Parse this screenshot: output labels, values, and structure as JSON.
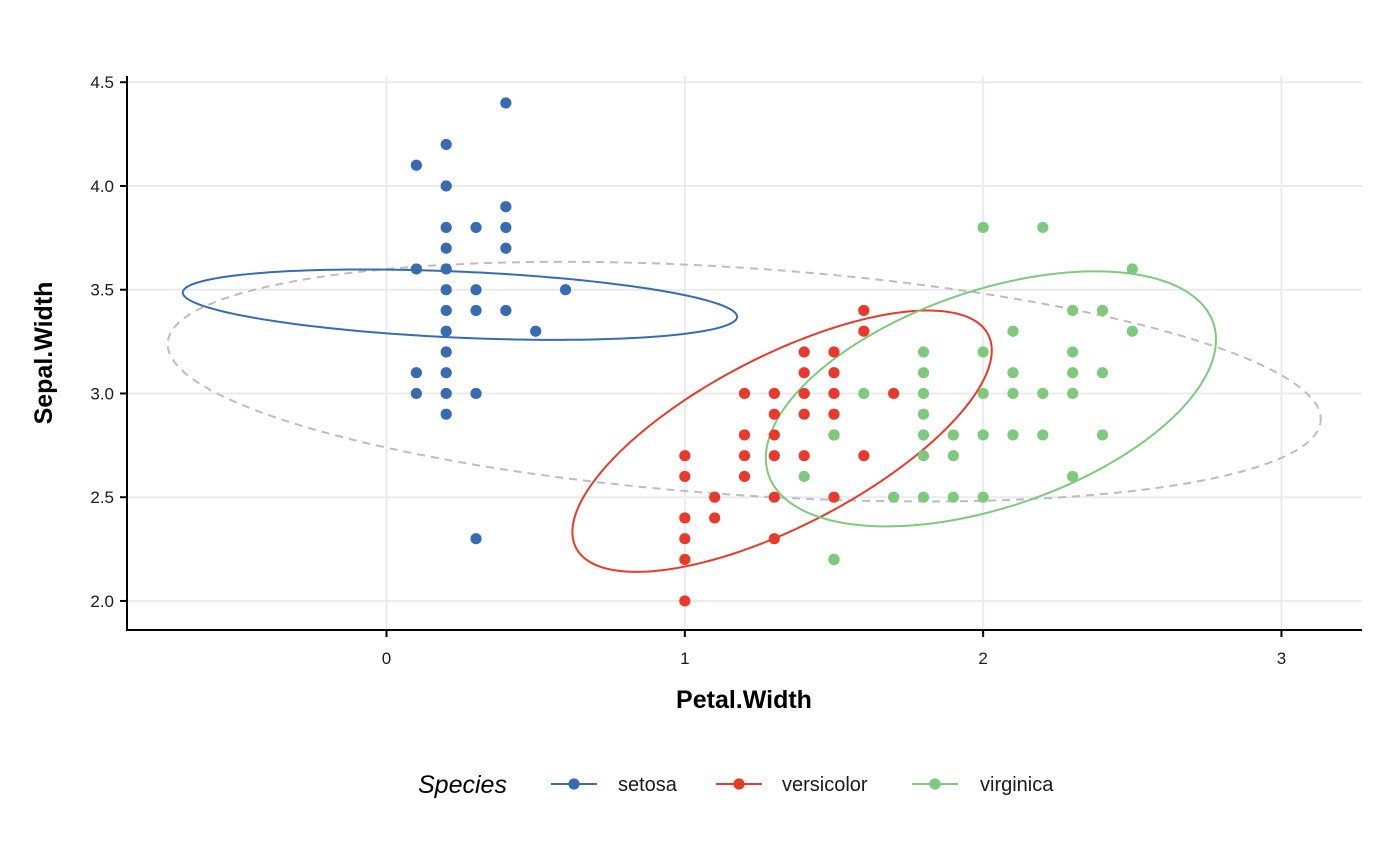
{
  "chart_data": {
    "type": "scatter",
    "title": "",
    "xlabel": "Petal.Width",
    "ylabel": "Sepal.Width",
    "xlim": [
      -0.87,
      3.27
    ],
    "ylim": [
      1.86,
      4.53
    ],
    "xticks": [
      0,
      1,
      2,
      3
    ],
    "yticks": [
      2.0,
      2.5,
      3.0,
      3.5,
      4.0,
      4.5
    ],
    "xtick_labels": [
      "0",
      "1",
      "2",
      "3"
    ],
    "ytick_labels": [
      "2.0",
      "2.5",
      "3.0",
      "3.5",
      "4.0",
      "4.5"
    ],
    "grid": true,
    "legend": {
      "title": "Species",
      "position": "bottom",
      "entries": [
        "setosa",
        "versicolor",
        "virginica"
      ]
    },
    "overall_ellipse": {
      "style": "dashed",
      "color": "#bdbdbd",
      "center": [
        1.199,
        3.057
      ],
      "semi_axes": [
        1.942,
        0.546
      ],
      "angle_deg": -5.8
    },
    "series": [
      {
        "name": "setosa",
        "color": "#386cb0",
        "ellipse": {
          "center": [
            0.246,
            3.428
          ],
          "semi_axes": [
            0.159,
            0.931
          ],
          "angle_deg": 86.3
        },
        "points": [
          [
            0.4,
            4.4
          ],
          [
            0.2,
            4.2
          ],
          [
            0.1,
            4.1
          ],
          [
            0.2,
            4.0
          ],
          [
            0.4,
            3.9
          ],
          [
            0.2,
            3.8
          ],
          [
            0.3,
            3.8
          ],
          [
            0.4,
            3.8
          ],
          [
            0.2,
            3.7
          ],
          [
            0.4,
            3.7
          ],
          [
            0.1,
            3.6
          ],
          [
            0.2,
            3.6
          ],
          [
            0.2,
            3.5
          ],
          [
            0.3,
            3.5
          ],
          [
            0.6,
            3.5
          ],
          [
            0.2,
            3.4
          ],
          [
            0.3,
            3.4
          ],
          [
            0.4,
            3.4
          ],
          [
            0.2,
            3.3
          ],
          [
            0.5,
            3.3
          ],
          [
            0.2,
            3.2
          ],
          [
            0.1,
            3.1
          ],
          [
            0.2,
            3.1
          ],
          [
            0.1,
            3.0
          ],
          [
            0.2,
            3.0
          ],
          [
            0.3,
            3.0
          ],
          [
            0.2,
            2.9
          ],
          [
            0.3,
            2.3
          ]
        ]
      },
      {
        "name": "versicolor",
        "color": "#e8392d",
        "ellipse": {
          "center": [
            1.326,
            2.77
          ],
          "semi_axes": [
            0.87,
            0.366
          ],
          "angle_deg": 40.5
        },
        "points": [
          [
            1.6,
            3.4
          ],
          [
            1.6,
            3.3
          ],
          [
            1.4,
            3.2
          ],
          [
            1.5,
            3.2
          ],
          [
            1.4,
            3.1
          ],
          [
            1.5,
            3.1
          ],
          [
            1.2,
            3.0
          ],
          [
            1.3,
            3.0
          ],
          [
            1.4,
            3.0
          ],
          [
            1.5,
            3.0
          ],
          [
            1.7,
            3.0
          ],
          [
            1.3,
            2.9
          ],
          [
            1.4,
            2.9
          ],
          [
            1.5,
            2.9
          ],
          [
            1.2,
            2.8
          ],
          [
            1.3,
            2.8
          ],
          [
            1.5,
            2.8
          ],
          [
            1.0,
            2.7
          ],
          [
            1.2,
            2.7
          ],
          [
            1.3,
            2.7
          ],
          [
            1.4,
            2.7
          ],
          [
            1.6,
            2.7
          ],
          [
            1.0,
            2.6
          ],
          [
            1.2,
            2.6
          ],
          [
            1.1,
            2.5
          ],
          [
            1.3,
            2.5
          ],
          [
            1.5,
            2.5
          ],
          [
            1.0,
            2.4
          ],
          [
            1.1,
            2.4
          ],
          [
            1.0,
            2.3
          ],
          [
            1.3,
            2.3
          ],
          [
            1.0,
            2.2
          ],
          [
            1.5,
            2.2
          ],
          [
            1.0,
            2.0
          ]
        ]
      },
      {
        "name": "virginica",
        "color": "#7fc97f",
        "ellipse": {
          "center": [
            2.026,
            2.974
          ],
          "semi_axes": [
            0.842,
            0.488
          ],
          "angle_deg": 33.0
        },
        "points": [
          [
            2.0,
            3.8
          ],
          [
            2.2,
            3.8
          ],
          [
            2.5,
            3.6
          ],
          [
            2.3,
            3.4
          ],
          [
            2.4,
            3.4
          ],
          [
            2.1,
            3.3
          ],
          [
            2.5,
            3.3
          ],
          [
            1.8,
            3.2
          ],
          [
            2.0,
            3.2
          ],
          [
            2.3,
            3.2
          ],
          [
            1.8,
            3.1
          ],
          [
            2.1,
            3.1
          ],
          [
            2.3,
            3.1
          ],
          [
            2.4,
            3.1
          ],
          [
            1.6,
            3.0
          ],
          [
            1.8,
            3.0
          ],
          [
            2.0,
            3.0
          ],
          [
            2.1,
            3.0
          ],
          [
            2.2,
            3.0
          ],
          [
            2.3,
            3.0
          ],
          [
            1.8,
            2.9
          ],
          [
            1.5,
            2.8
          ],
          [
            1.8,
            2.8
          ],
          [
            1.9,
            2.8
          ],
          [
            2.0,
            2.8
          ],
          [
            2.1,
            2.8
          ],
          [
            2.2,
            2.8
          ],
          [
            2.4,
            2.8
          ],
          [
            1.8,
            2.7
          ],
          [
            1.9,
            2.7
          ],
          [
            1.4,
            2.6
          ],
          [
            2.3,
            2.6
          ],
          [
            1.7,
            2.5
          ],
          [
            1.8,
            2.5
          ],
          [
            1.9,
            2.5
          ],
          [
            2.0,
            2.5
          ],
          [
            1.5,
            2.2
          ]
        ]
      }
    ]
  }
}
